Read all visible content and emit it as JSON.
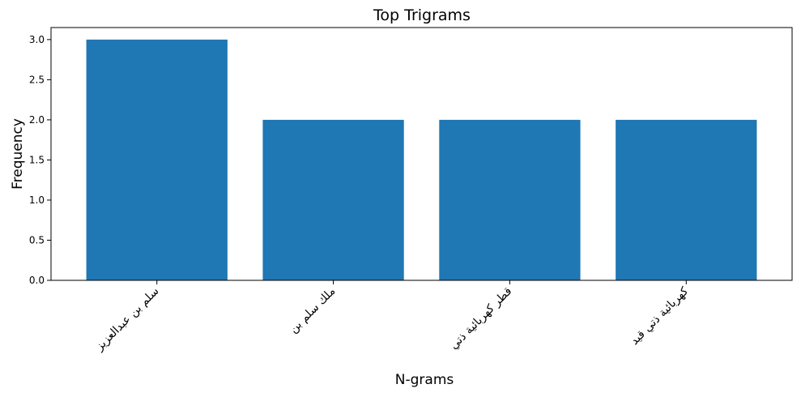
{
  "chart_data": {
    "type": "bar",
    "title": "Top Trigrams",
    "xlabel": "N-grams",
    "ylabel": "Frequency",
    "categories": [
      "سلم بن عبدالعزيز",
      "ملك سلم بن",
      "قطر كهربائية ذتي",
      "كهربائية ذتي قيد"
    ],
    "values": [
      3,
      2,
      2,
      2
    ],
    "ylim": [
      0,
      3.15
    ],
    "yticks": [
      "0.0",
      "0.5",
      "1.0",
      "1.5",
      "2.0",
      "2.5",
      "3.0"
    ],
    "bar_color": "#1f77b4",
    "grid": false
  }
}
